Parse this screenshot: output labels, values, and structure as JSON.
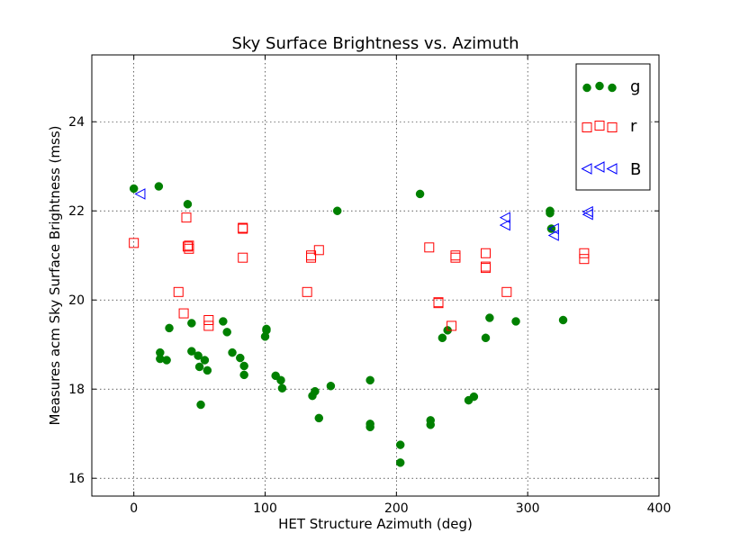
{
  "chart_data": {
    "type": "scatter",
    "title": "Sky Surface Brightness vs. Azimuth",
    "xlabel": "HET Structure Azimuth (deg)",
    "ylabel": "Measures acm Sky Surface Brightness (mss)",
    "xlim": [
      -32,
      400
    ],
    "ylim": [
      15.6,
      25.5
    ],
    "xticks": [
      0,
      100,
      200,
      300,
      400
    ],
    "yticks": [
      16,
      18,
      20,
      22,
      24
    ],
    "grid": true,
    "legend_position": "top-right",
    "series": [
      {
        "name": "g",
        "marker": "circle",
        "color": "#008000",
        "x": [
          0,
          19,
          41,
          218,
          317,
          317,
          318,
          155,
          20,
          20,
          25,
          27,
          44,
          44,
          49,
          50,
          51,
          54,
          56,
          68,
          71,
          75,
          81,
          84,
          84,
          100,
          101,
          101,
          108,
          112,
          113,
          136,
          138,
          141,
          150,
          180,
          180,
          180,
          203,
          203,
          226,
          226,
          235,
          239,
          255,
          259,
          268,
          271,
          291,
          327
        ],
        "y": [
          22.5,
          22.55,
          22.15,
          22.38,
          22.0,
          21.95,
          21.6,
          22.0,
          18.82,
          18.68,
          18.65,
          19.37,
          18.85,
          19.48,
          18.75,
          18.5,
          17.65,
          18.65,
          18.42,
          19.52,
          19.28,
          18.82,
          18.7,
          18.52,
          18.32,
          19.18,
          19.32,
          19.35,
          18.3,
          18.2,
          18.02,
          17.85,
          17.95,
          17.35,
          18.07,
          18.2,
          17.22,
          17.15,
          16.75,
          16.35,
          17.3,
          17.2,
          19.15,
          19.32,
          17.75,
          17.83,
          19.15,
          19.6,
          19.52,
          19.55
        ]
      },
      {
        "name": "r",
        "marker": "square-open",
        "color": "#ff0000",
        "x": [
          0,
          34,
          38,
          40,
          41,
          42,
          42,
          57,
          57,
          83,
          83,
          83,
          132,
          135,
          135,
          141,
          225,
          232,
          232,
          242,
          245,
          245,
          268,
          268,
          268,
          284,
          343,
          343
        ],
        "y": [
          21.28,
          20.18,
          19.7,
          21.85,
          21.2,
          21.15,
          21.22,
          19.55,
          19.42,
          21.62,
          21.6,
          20.95,
          20.18,
          20.95,
          21.0,
          21.12,
          21.18,
          19.95,
          19.93,
          19.42,
          20.95,
          21.0,
          21.05,
          20.72,
          20.75,
          20.18,
          21.05,
          20.92
        ]
      },
      {
        "name": "B",
        "marker": "triangle-left-open",
        "color": "#0000ff",
        "x": [
          5,
          283,
          283,
          320,
          320,
          346,
          346
        ],
        "y": [
          22.38,
          21.85,
          21.68,
          21.6,
          21.45,
          21.98,
          21.92
        ]
      }
    ]
  }
}
